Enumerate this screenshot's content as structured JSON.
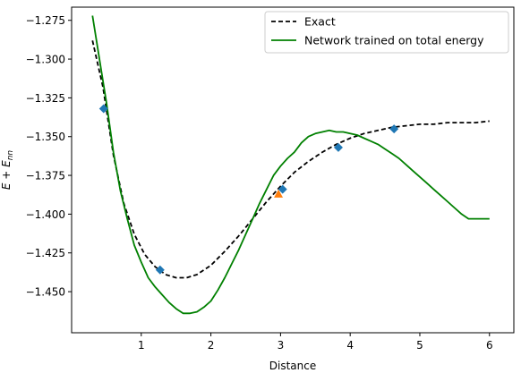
{
  "chart_data": {
    "type": "line",
    "title": "",
    "xlabel": "Distance",
    "ylabel": "E + E_nn",
    "xlim": [
      0.0,
      6.35
    ],
    "ylim": [
      -1.4765,
      -1.2665
    ],
    "xticks": [
      1,
      2,
      3,
      4,
      5,
      6
    ],
    "xtick_labels": [
      "1",
      "2",
      "3",
      "4",
      "5",
      "6"
    ],
    "yticks": [
      -1.275,
      -1.3,
      -1.325,
      -1.35,
      -1.375,
      -1.4,
      -1.425,
      -1.45
    ],
    "ytick_labels": [
      "−1.275",
      "−1.300",
      "−1.325",
      "−1.350",
      "−1.375",
      "−1.400",
      "−1.425",
      "−1.450"
    ],
    "grid": false,
    "legend_position": "upper right",
    "series": [
      {
        "name": "Exact",
        "style": "dashed",
        "color": "#000000",
        "x": [
          0.3,
          0.45,
          0.6,
          0.75,
          0.9,
          1.05,
          1.2,
          1.35,
          1.5,
          1.65,
          1.8,
          2.0,
          2.2,
          2.4,
          2.6,
          2.8,
          3.0,
          3.2,
          3.4,
          3.6,
          3.8,
          4.0,
          4.2,
          4.4,
          4.6,
          4.8,
          5.0,
          5.2,
          5.4,
          5.6,
          5.8,
          6.0
        ],
        "y": [
          -1.288,
          -1.318,
          -1.362,
          -1.393,
          -1.413,
          -1.426,
          -1.434,
          -1.439,
          -1.441,
          -1.441,
          -1.439,
          -1.433,
          -1.424,
          -1.414,
          -1.403,
          -1.392,
          -1.382,
          -1.373,
          -1.366,
          -1.36,
          -1.355,
          -1.351,
          -1.348,
          -1.346,
          -1.344,
          -1.343,
          -1.342,
          -1.342,
          -1.341,
          -1.341,
          -1.341,
          -1.34
        ]
      },
      {
        "name": "Network trained on total energy",
        "style": "solid",
        "color": "#008000",
        "x": [
          0.3,
          0.4,
          0.5,
          0.6,
          0.7,
          0.8,
          0.9,
          1.0,
          1.1,
          1.2,
          1.3,
          1.4,
          1.5,
          1.6,
          1.7,
          1.8,
          1.9,
          2.0,
          2.1,
          2.2,
          2.3,
          2.4,
          2.5,
          2.6,
          2.7,
          2.8,
          2.9,
          3.0,
          3.1,
          3.2,
          3.3,
          3.4,
          3.5,
          3.6,
          3.7,
          3.8,
          3.9,
          4.0,
          4.1,
          4.2,
          4.3,
          4.4,
          4.5,
          4.6,
          4.7,
          4.8,
          4.9,
          5.0,
          5.1,
          5.2,
          5.3,
          5.4,
          5.5,
          5.6,
          5.7,
          5.8,
          5.9,
          6.0
        ],
        "y": [
          -1.272,
          -1.3,
          -1.328,
          -1.36,
          -1.385,
          -1.403,
          -1.42,
          -1.431,
          -1.441,
          -1.447,
          -1.452,
          -1.457,
          -1.461,
          -1.464,
          -1.464,
          -1.463,
          -1.46,
          -1.456,
          -1.449,
          -1.441,
          -1.432,
          -1.423,
          -1.413,
          -1.403,
          -1.393,
          -1.384,
          -1.375,
          -1.369,
          -1.364,
          -1.36,
          -1.354,
          -1.35,
          -1.348,
          -1.347,
          -1.346,
          -1.347,
          -1.347,
          -1.348,
          -1.349,
          -1.351,
          -1.353,
          -1.355,
          -1.358,
          -1.361,
          -1.364,
          -1.368,
          -1.372,
          -1.376,
          -1.38,
          -1.384,
          -1.388,
          -1.392,
          -1.396,
          -1.4,
          -1.403,
          -1.403,
          -1.403,
          -1.403
        ]
      },
      {
        "name": "",
        "style": "markers-diamond",
        "color": "#1f77b4",
        "x": [
          0.46,
          1.27,
          3.03,
          3.83,
          4.63
        ],
        "y": [
          -1.332,
          -1.436,
          -1.384,
          -1.357,
          -1.345
        ]
      },
      {
        "name": "",
        "style": "markers-triangle",
        "color": "#ff7f0e",
        "x": [
          2.97
        ],
        "y": [
          -1.387
        ]
      }
    ]
  }
}
